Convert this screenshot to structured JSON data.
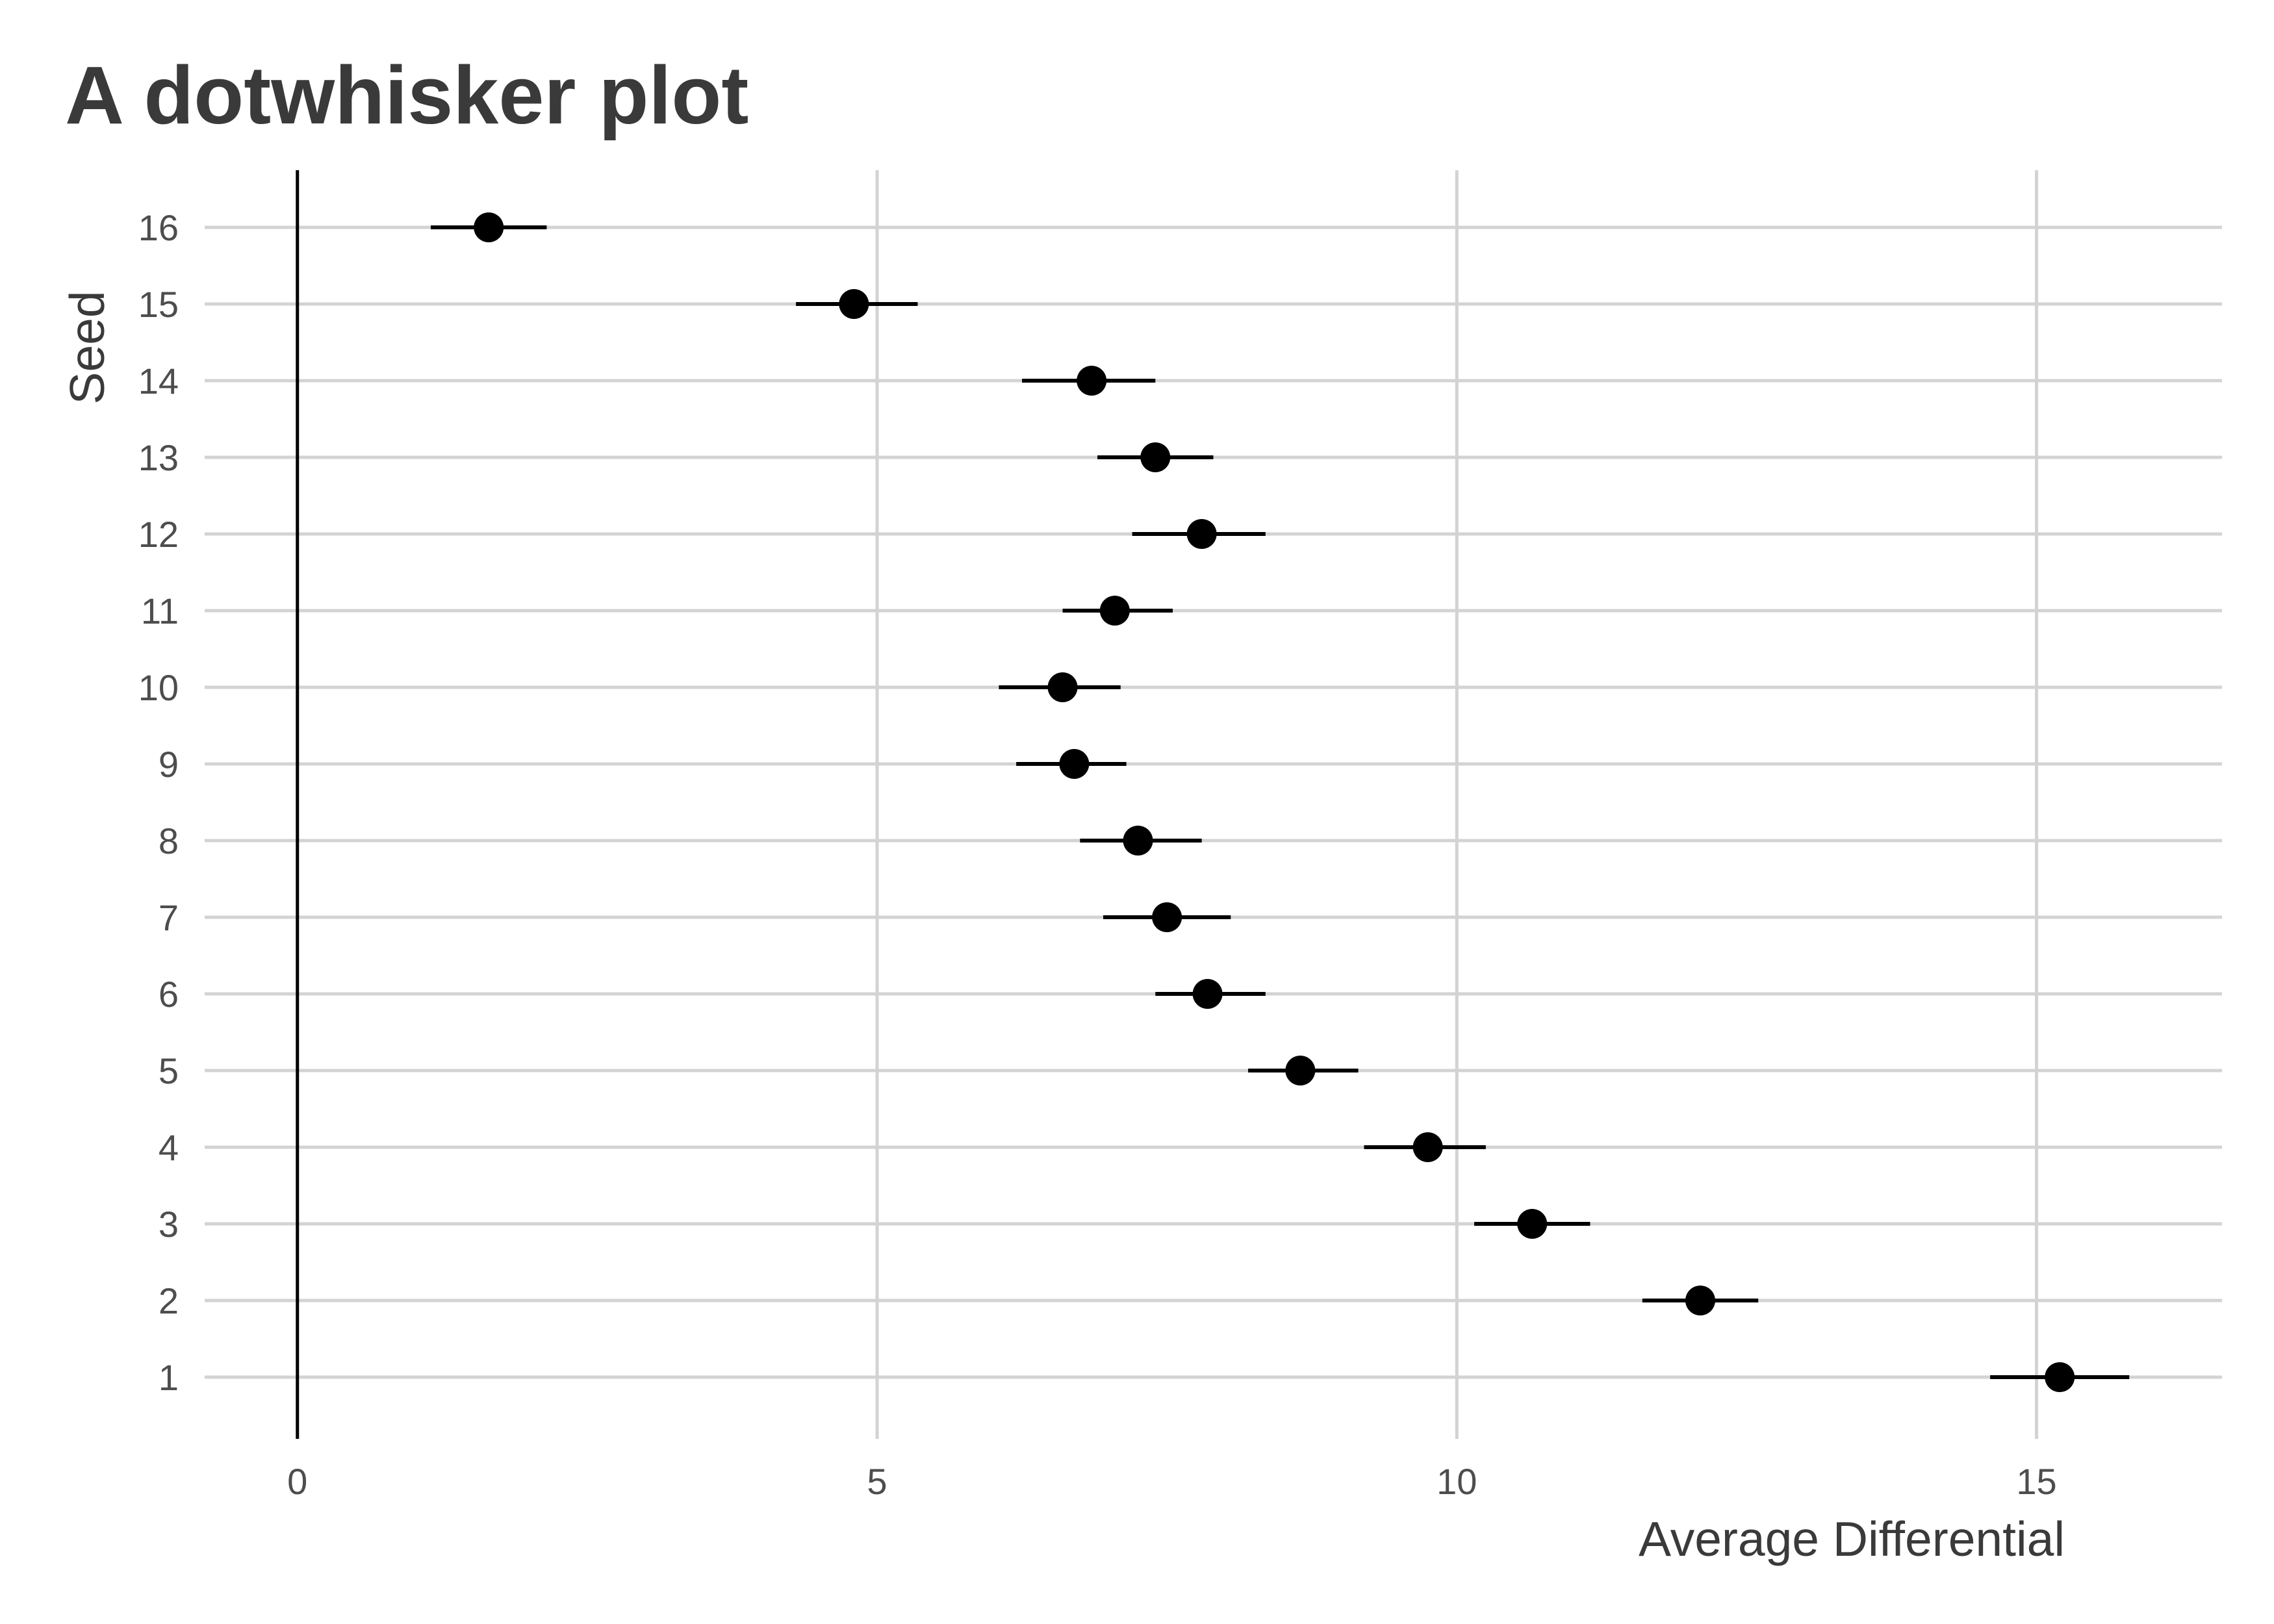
{
  "chart_data": {
    "type": "scatter",
    "subtype": "dot-whisker",
    "title": "A dotwhisker plot",
    "xlabel": "Average Differential",
    "ylabel": "Seed",
    "xlim": [
      -0.8,
      16.6
    ],
    "xticks": [
      0,
      5,
      10,
      15
    ],
    "reference_line_x": 0,
    "grid": true,
    "categories": [
      "1",
      "2",
      "3",
      "4",
      "5",
      "6",
      "7",
      "8",
      "9",
      "10",
      "11",
      "12",
      "13",
      "14",
      "15",
      "16"
    ],
    "points": [
      {
        "seed": "1",
        "estimate": 15.2,
        "low": 14.6,
        "high": 15.8
      },
      {
        "seed": "2",
        "estimate": 12.1,
        "low": 11.6,
        "high": 12.6
      },
      {
        "seed": "3",
        "estimate": 10.65,
        "low": 10.15,
        "high": 11.15
      },
      {
        "seed": "4",
        "estimate": 9.75,
        "low": 9.2,
        "high": 10.25
      },
      {
        "seed": "5",
        "estimate": 8.65,
        "low": 8.2,
        "high": 9.15
      },
      {
        "seed": "6",
        "estimate": 7.85,
        "low": 7.4,
        "high": 8.35
      },
      {
        "seed": "7",
        "estimate": 7.5,
        "low": 6.95,
        "high": 8.05
      },
      {
        "seed": "8",
        "estimate": 7.25,
        "low": 6.75,
        "high": 7.8
      },
      {
        "seed": "9",
        "estimate": 6.7,
        "low": 6.2,
        "high": 7.15
      },
      {
        "seed": "10",
        "estimate": 6.6,
        "low": 6.05,
        "high": 7.1
      },
      {
        "seed": "11",
        "estimate": 7.05,
        "low": 6.6,
        "high": 7.55
      },
      {
        "seed": "12",
        "estimate": 7.8,
        "low": 7.2,
        "high": 8.35
      },
      {
        "seed": "13",
        "estimate": 7.4,
        "low": 6.9,
        "high": 7.9
      },
      {
        "seed": "14",
        "estimate": 6.85,
        "low": 6.25,
        "high": 7.4
      },
      {
        "seed": "15",
        "estimate": 4.8,
        "low": 4.3,
        "high": 5.35
      },
      {
        "seed": "16",
        "estimate": 1.65,
        "low": 1.15,
        "high": 2.15
      }
    ],
    "colors": {
      "point": "#000000",
      "grid": "#d3d3d3",
      "text": "#4d4d4d"
    }
  }
}
